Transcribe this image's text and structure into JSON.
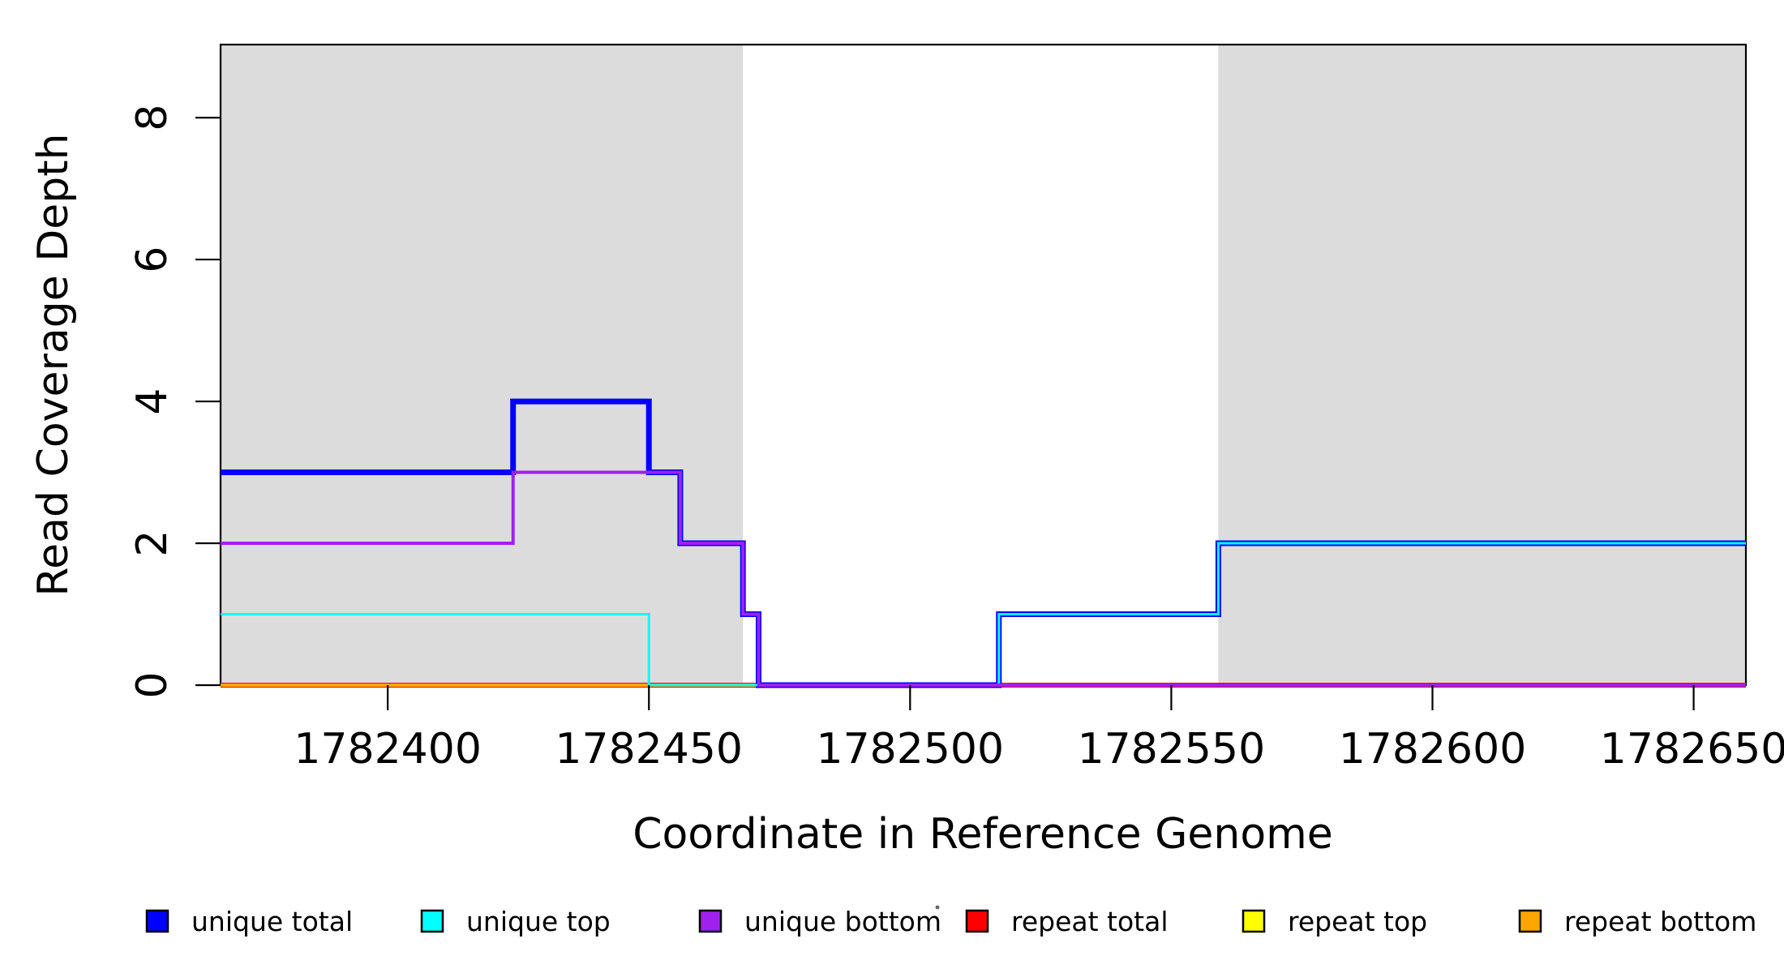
{
  "figure": {
    "xlabel": "Coordinate in Reference Genome",
    "ylabel": "Read Coverage Depth",
    "background_color": "#FFFFFF",
    "shade_color": "#DCDCDC",
    "box_color": "#000000"
  },
  "chart_data": {
    "type": "line",
    "step_mode": "post",
    "title": "",
    "xlabel": "Coordinate in Reference Genome",
    "ylabel": "Read Coverage Depth",
    "xlim": [
      1782368,
      1782660
    ],
    "ylim": [
      0,
      9.03
    ],
    "grid": false,
    "x_ticks": [
      {
        "value": 1782400,
        "label": "1782400"
      },
      {
        "value": 1782450,
        "label": "1782450"
      },
      {
        "value": 1782500,
        "label": "1782500"
      },
      {
        "value": 1782550,
        "label": "1782550"
      },
      {
        "value": 1782600,
        "label": "1782600"
      },
      {
        "value": 1782650,
        "label": "1782650"
      }
    ],
    "y_ticks": [
      {
        "value": 0,
        "label": "0"
      },
      {
        "value": 2,
        "label": "2"
      },
      {
        "value": 4,
        "label": "4"
      },
      {
        "value": 6,
        "label": "6"
      },
      {
        "value": 8,
        "label": "8"
      }
    ],
    "shaded_regions": [
      {
        "name": "left-repeat-region",
        "from": 1782368,
        "to": 1782468
      },
      {
        "name": "right-repeat-region",
        "from": 1782559,
        "to": 1782660
      }
    ],
    "series": [
      {
        "name": "unique total",
        "color": "#0000FF",
        "width": 7,
        "points": [
          [
            1782368,
            3
          ],
          [
            1782424,
            4
          ],
          [
            1782450,
            3
          ],
          [
            1782456,
            2
          ],
          [
            1782468,
            1
          ],
          [
            1782471,
            0
          ],
          [
            1782517,
            1
          ],
          [
            1782559,
            2
          ],
          [
            1782660,
            2
          ]
        ]
      },
      {
        "name": "unique top",
        "color": "#00FFFF",
        "width": 3,
        "points": [
          [
            1782368,
            1
          ],
          [
            1782450,
            0
          ],
          [
            1782517,
            1
          ],
          [
            1782559,
            2
          ],
          [
            1782660,
            2
          ]
        ]
      },
      {
        "name": "unique bottom",
        "color": "#A020F0",
        "width": 4,
        "points": [
          [
            1782368,
            2
          ],
          [
            1782424,
            3
          ],
          [
            1782456,
            2
          ],
          [
            1782468,
            1
          ],
          [
            1782471,
            0
          ],
          [
            1782660,
            0
          ]
        ]
      },
      {
        "name": "repeat total",
        "color": "#FF0000",
        "width": 6,
        "points": [
          [
            1782368,
            0
          ],
          [
            1782660,
            0
          ]
        ]
      },
      {
        "name": "repeat top",
        "color": "#FFFF00",
        "width": 3,
        "points": [
          [
            1782368,
            0
          ],
          [
            1782660,
            0
          ]
        ]
      },
      {
        "name": "repeat bottom",
        "color": "#FFA500",
        "width": 4,
        "points": [
          [
            1782368,
            0
          ],
          [
            1782660,
            0
          ]
        ]
      }
    ],
    "legend": {
      "position": "bottom",
      "items": [
        {
          "label": "unique total",
          "color": "#0000FF"
        },
        {
          "label": "unique top",
          "color": "#00FFFF"
        },
        {
          "label": "unique bottom",
          "color": "#A020F0"
        },
        {
          "label": "repeat total",
          "color": "#FF0000"
        },
        {
          "label": "repeat top",
          "color": "#FFFF00"
        },
        {
          "label": "repeat bottom",
          "color": "#FFA500"
        }
      ]
    }
  }
}
